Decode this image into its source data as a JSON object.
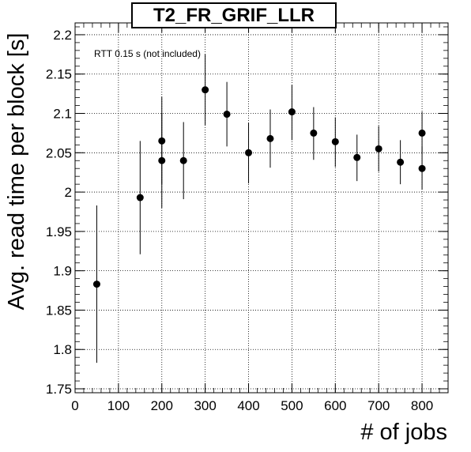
{
  "chart_data": {
    "type": "scatter",
    "title": "T2_FR_GRIF_LLR",
    "xlabel": "# of jobs",
    "ylabel": "Avg. read time per block [s]",
    "annotation": "RTT 0.15 s (not included)",
    "xlim": [
      0,
      860
    ],
    "ylim": [
      1.745,
      2.215
    ],
    "xticks": [
      0,
      100,
      200,
      300,
      400,
      500,
      600,
      700,
      800
    ],
    "xtick_labels": [
      "0",
      "100",
      "200",
      "300",
      "400",
      "500",
      "600",
      "700",
      "800"
    ],
    "yticks": [
      1.75,
      1.8,
      1.85,
      1.9,
      1.95,
      2.0,
      2.05,
      2.1,
      2.15,
      2.2
    ],
    "ytick_labels": [
      "1.75",
      "1.8",
      "1.85",
      "1.9",
      "1.95",
      "2",
      "2.05",
      "2.1",
      "2.15",
      "2.2"
    ],
    "grid": true,
    "series": [
      {
        "points": [
          {
            "x": 50,
            "y": 1.883,
            "lo": 1.783,
            "hi": 1.983
          },
          {
            "x": 150,
            "y": 1.993,
            "lo": 1.921,
            "hi": 2.065
          },
          {
            "x": 200,
            "y": 2.04,
            "lo": 1.98,
            "hi": 2.1
          },
          {
            "x": 200,
            "y": 2.065,
            "lo": 2.01,
            "hi": 2.121
          },
          {
            "x": 250,
            "y": 2.04,
            "lo": 1.991,
            "hi": 2.089
          },
          {
            "x": 300,
            "y": 2.13,
            "lo": 2.085,
            "hi": 2.175
          },
          {
            "x": 350,
            "y": 2.099,
            "lo": 2.058,
            "hi": 2.14
          },
          {
            "x": 400,
            "y": 2.05,
            "lo": 2.011,
            "hi": 2.088
          },
          {
            "x": 450,
            "y": 2.068,
            "lo": 2.031,
            "hi": 2.105
          },
          {
            "x": 500,
            "y": 2.102,
            "lo": 2.066,
            "hi": 2.136
          },
          {
            "x": 550,
            "y": 2.075,
            "lo": 2.041,
            "hi": 2.108
          },
          {
            "x": 600,
            "y": 2.064,
            "lo": 2.032,
            "hi": 2.095
          },
          {
            "x": 650,
            "y": 2.044,
            "lo": 2.014,
            "hi": 2.073
          },
          {
            "x": 700,
            "y": 2.055,
            "lo": 2.026,
            "hi": 2.084
          },
          {
            "x": 750,
            "y": 2.038,
            "lo": 2.01,
            "hi": 2.066
          },
          {
            "x": 800,
            "y": 2.03,
            "lo": 2.003,
            "hi": 2.058
          },
          {
            "x": 800,
            "y": 2.075,
            "lo": 2.048,
            "hi": 2.102
          }
        ]
      }
    ]
  }
}
